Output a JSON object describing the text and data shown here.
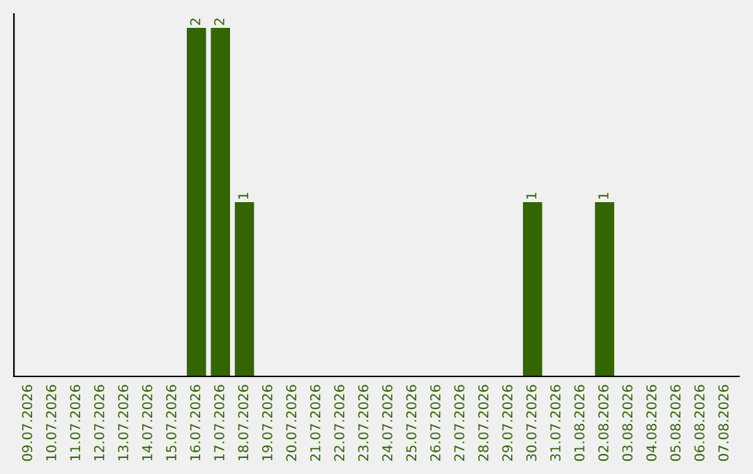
{
  "chart_data": {
    "type": "bar",
    "categories": [
      "09.07.2026",
      "10.07.2026",
      "11.07.2026",
      "12.07.2026",
      "13.07.2026",
      "14.07.2026",
      "15.07.2026",
      "16.07.2026",
      "17.07.2026",
      "18.07.2026",
      "19.07.2026",
      "20.07.2026",
      "21.07.2026",
      "22.07.2026",
      "23.07.2026",
      "24.07.2026",
      "25.07.2026",
      "26.07.2026",
      "27.07.2026",
      "28.07.2026",
      "29.07.2026",
      "30.07.2026",
      "31.07.2026",
      "01.08.2026",
      "02.08.2026",
      "03.08.2026",
      "04.08.2026",
      "05.08.2026",
      "06.08.2026",
      "07.08.2026"
    ],
    "values": [
      0,
      0,
      0,
      0,
      0,
      0,
      0,
      2,
      2,
      1,
      0,
      0,
      0,
      0,
      0,
      0,
      0,
      0,
      0,
      0,
      0,
      1,
      0,
      0,
      1,
      0,
      0,
      0,
      0,
      0
    ],
    "value_labels": [
      null,
      null,
      null,
      null,
      null,
      null,
      null,
      "2",
      "2",
      "1",
      null,
      null,
      null,
      null,
      null,
      null,
      null,
      null,
      null,
      null,
      null,
      "1",
      null,
      null,
      "1",
      null,
      null,
      null,
      null,
      null
    ],
    "color": "#336600",
    "tick_labels": "x",
    "grid": false,
    "legend": false
  }
}
